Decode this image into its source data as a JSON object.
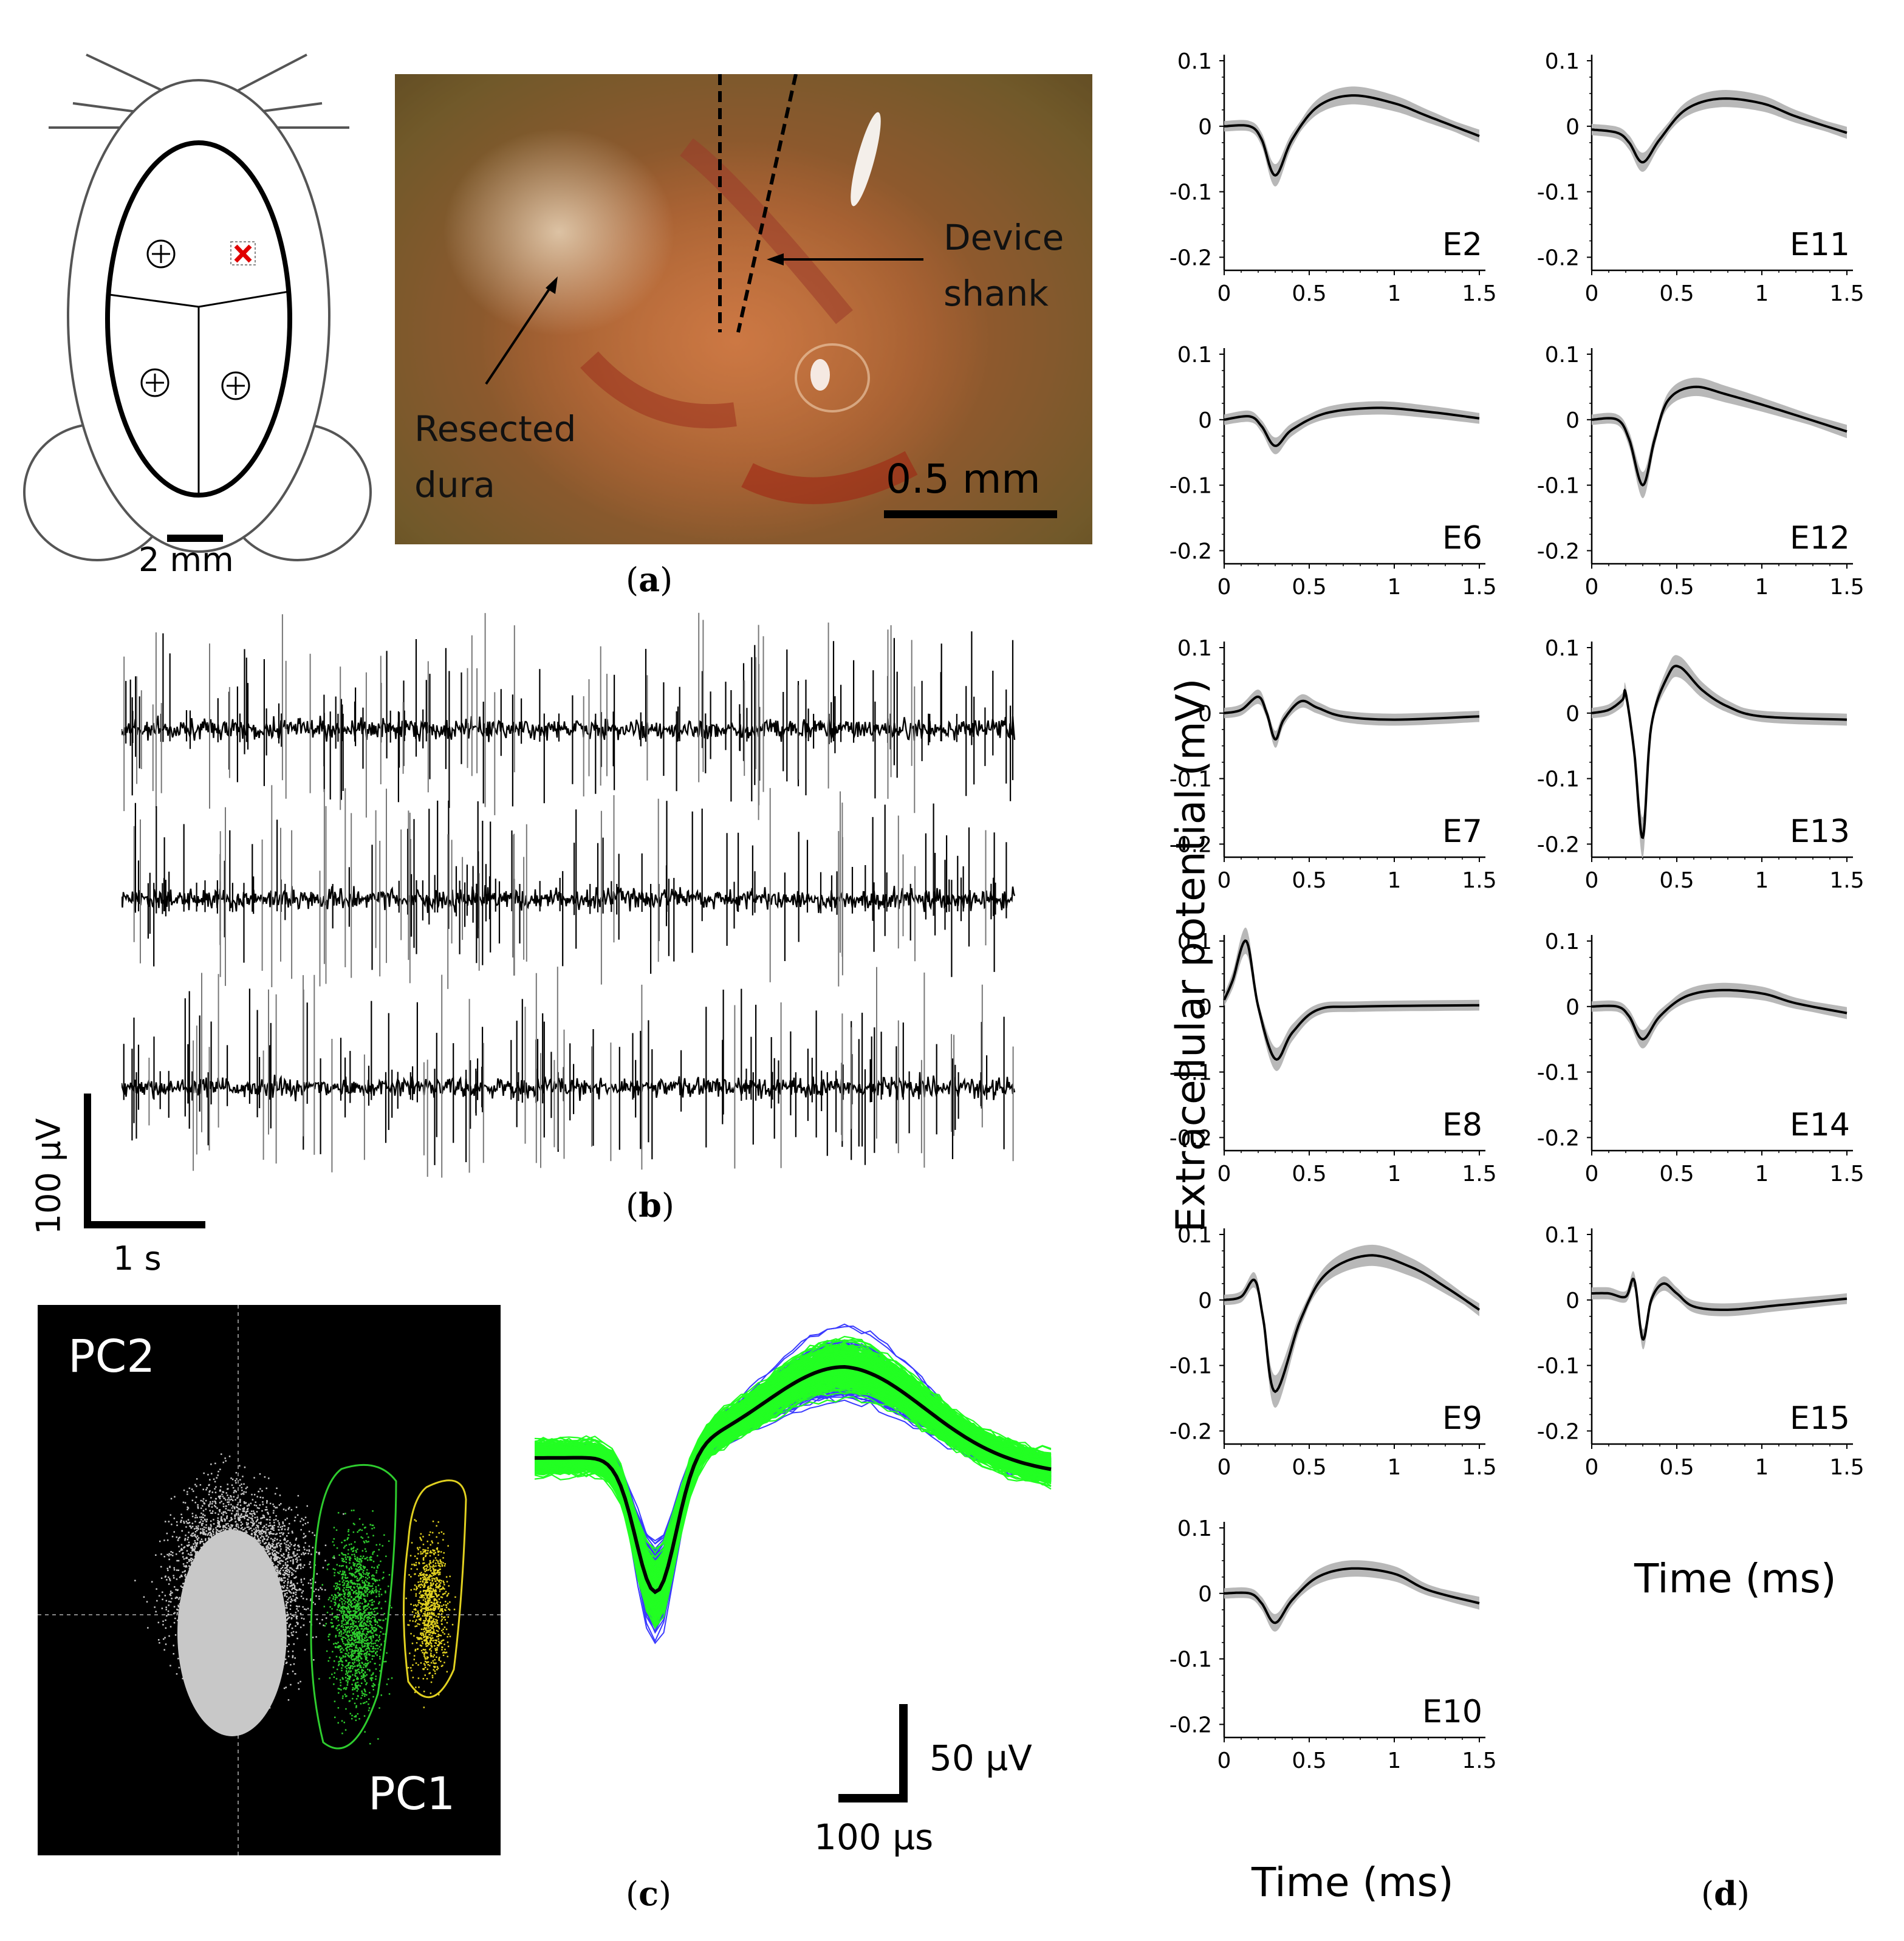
{
  "panel_a": {
    "scale_bar_schematic": "2 mm",
    "photo_labels": {
      "device_shank_line1": "Device",
      "device_shank_line2": "shank",
      "resected_line1": "Resected",
      "resected_line2": "dura",
      "scale_bar": "0.5 mm"
    },
    "caption_open": "(",
    "caption_letter": "a",
    "caption_close": ")"
  },
  "panel_b": {
    "scale_y": "100 µV",
    "scale_x": "1 s",
    "caption_letter": "b"
  },
  "panel_c": {
    "pc1": "PC1",
    "pc2": "PC2",
    "scale_y": "50 µV",
    "scale_x": "100 µs",
    "caption_letter": "c",
    "colors": {
      "cluster1": "#2ecc2e",
      "cluster2": "#e0d020",
      "noise": "#c8c8c8",
      "blue": "#3a3aff",
      "green": "#22ff22"
    }
  },
  "panel_d": {
    "ylabel": "Extracellular potential (mV)",
    "xlabel": "Time (ms)",
    "caption_letter": "d",
    "yticks": [
      "0.1",
      "0",
      "-0.1",
      "-0.2"
    ],
    "xticks": [
      "0",
      "0.5",
      "1",
      "1.5"
    ]
  },
  "chart_data": [
    {
      "type": "line",
      "title": "",
      "xlabel": "Time (ms)",
      "ylabel": "Extracellular potential (mV)",
      "xlim": [
        0,
        1.5
      ],
      "ylim": [
        -0.22,
        0.1
      ],
      "series": [
        {
          "name": "E2",
          "x": [
            0,
            0.15,
            0.22,
            0.3,
            0.4,
            0.55,
            0.75,
            1.0,
            1.2,
            1.5
          ],
          "y": [
            0,
            0,
            -0.02,
            -0.075,
            -0.02,
            0.03,
            0.047,
            0.035,
            0.015,
            -0.015
          ]
        },
        {
          "name": "E6",
          "x": [
            0,
            0.15,
            0.22,
            0.3,
            0.4,
            0.6,
            0.9,
            1.2,
            1.5
          ],
          "y": [
            0,
            0.005,
            -0.01,
            -0.04,
            -0.015,
            0.01,
            0.018,
            0.012,
            0.002
          ]
        },
        {
          "name": "E7",
          "x": [
            0,
            0.1,
            0.2,
            0.25,
            0.3,
            0.35,
            0.45,
            0.55,
            0.7,
            1.0,
            1.5
          ],
          "y": [
            0,
            0.005,
            0.025,
            0.0,
            -0.04,
            -0.01,
            0.018,
            0.008,
            -0.005,
            -0.01,
            -0.005
          ]
        },
        {
          "name": "E8",
          "x": [
            0,
            0.05,
            0.13,
            0.2,
            0.3,
            0.4,
            0.55,
            0.8,
            1.5
          ],
          "y": [
            0.01,
            0.04,
            0.1,
            0.0,
            -0.08,
            -0.04,
            -0.005,
            0.0,
            0.002
          ]
        },
        {
          "name": "E9",
          "x": [
            0,
            0.1,
            0.18,
            0.23,
            0.3,
            0.45,
            0.6,
            0.85,
            1.1,
            1.3,
            1.5
          ],
          "y": [
            0,
            0.005,
            0.03,
            -0.03,
            -0.14,
            -0.03,
            0.04,
            0.068,
            0.05,
            0.02,
            -0.015
          ]
        },
        {
          "name": "E10",
          "x": [
            0,
            0.15,
            0.22,
            0.3,
            0.4,
            0.55,
            0.75,
            1.0,
            1.2,
            1.5
          ],
          "y": [
            0,
            0,
            -0.015,
            -0.045,
            -0.01,
            0.025,
            0.038,
            0.03,
            0.005,
            -0.015
          ]
        },
        {
          "name": "E11",
          "x": [
            0,
            0.15,
            0.22,
            0.3,
            0.4,
            0.55,
            0.75,
            1.0,
            1.2,
            1.5
          ],
          "y": [
            -0.005,
            -0.01,
            -0.025,
            -0.055,
            -0.02,
            0.025,
            0.042,
            0.035,
            0.015,
            -0.01
          ]
        },
        {
          "name": "E12",
          "x": [
            0,
            0.15,
            0.22,
            0.3,
            0.37,
            0.45,
            0.6,
            0.8,
            1.1,
            1.5
          ],
          "y": [
            0,
            0,
            -0.03,
            -0.1,
            -0.03,
            0.03,
            0.05,
            0.038,
            0.015,
            -0.018
          ]
        },
        {
          "name": "E13",
          "x": [
            0,
            0.1,
            0.18,
            0.2,
            0.25,
            0.3,
            0.35,
            0.45,
            0.52,
            0.65,
            0.8,
            1.0,
            1.5
          ],
          "y": [
            0,
            0.005,
            0.02,
            0.03,
            -0.06,
            -0.19,
            -0.02,
            0.058,
            0.07,
            0.035,
            0.01,
            -0.005,
            -0.01
          ]
        },
        {
          "name": "E14",
          "x": [
            0,
            0.15,
            0.22,
            0.3,
            0.4,
            0.55,
            0.75,
            1.0,
            1.2,
            1.5
          ],
          "y": [
            0,
            0,
            -0.015,
            -0.05,
            -0.015,
            0.015,
            0.025,
            0.02,
            0.005,
            -0.01
          ]
        },
        {
          "name": "E15",
          "x": [
            0,
            0.1,
            0.2,
            0.25,
            0.3,
            0.35,
            0.42,
            0.5,
            0.6,
            0.8,
            1.1,
            1.5
          ],
          "y": [
            0.01,
            0.01,
            0.005,
            0.03,
            -0.06,
            0.0,
            0.025,
            0.01,
            -0.01,
            -0.015,
            -0.008,
            0.002
          ]
        }
      ]
    }
  ]
}
